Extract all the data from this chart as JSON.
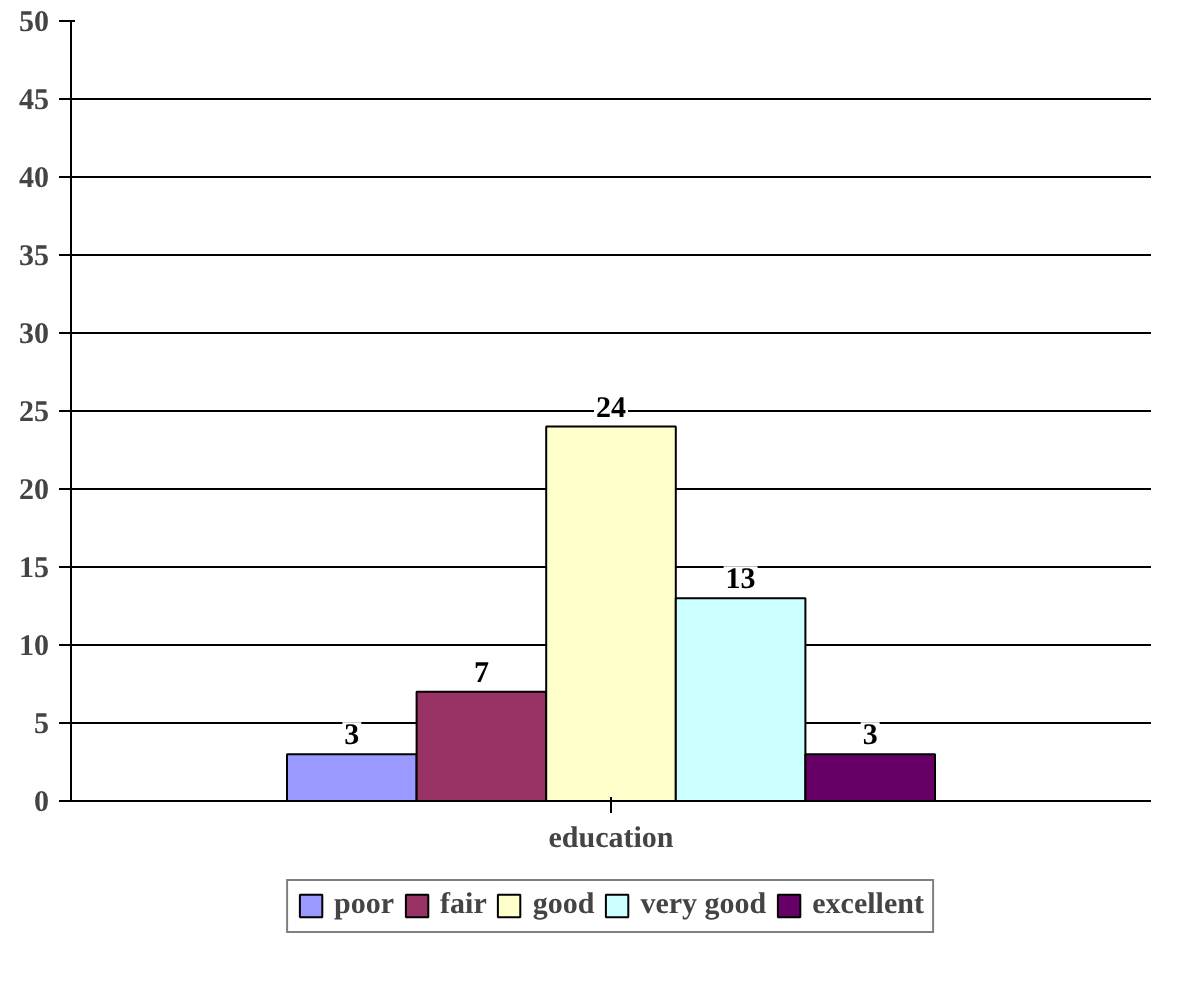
{
  "chart_data": {
    "type": "bar",
    "categories": [
      "education"
    ],
    "series": [
      {
        "name": "poor",
        "color": "#9999ff",
        "values": [
          3
        ]
      },
      {
        "name": "fair",
        "color": "#993366",
        "values": [
          7
        ]
      },
      {
        "name": "good",
        "color": "#ffffcc",
        "values": [
          24
        ]
      },
      {
        "name": "very good",
        "color": "#ccffff",
        "values": [
          13
        ]
      },
      {
        "name": "excellent",
        "color": "#660066",
        "values": [
          3
        ]
      }
    ],
    "ylim": [
      0,
      50
    ],
    "yticks": [
      0,
      5,
      10,
      15,
      20,
      25,
      30,
      35,
      40,
      45,
      50
    ],
    "grid": "y",
    "legend": "bottom",
    "data_labels": true
  }
}
